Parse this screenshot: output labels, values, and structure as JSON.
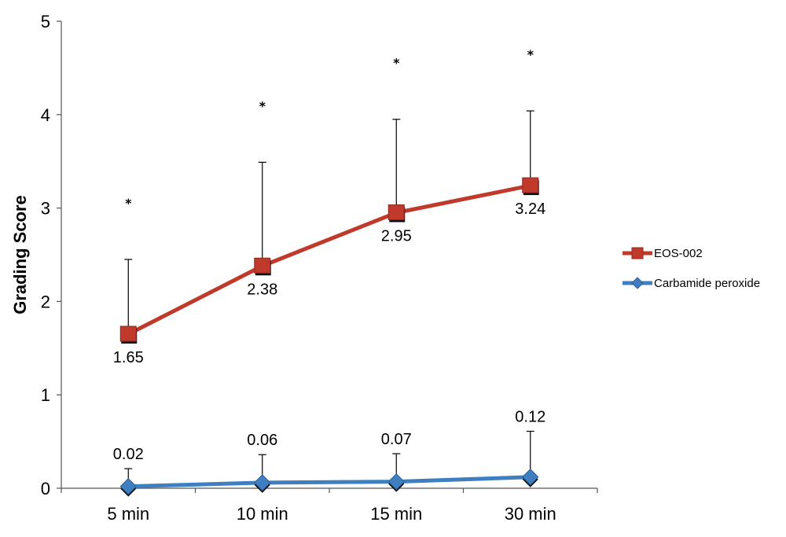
{
  "chart_data": {
    "type": "line",
    "categories": [
      "5 min",
      "10 min",
      "15 min",
      "30 min"
    ],
    "ylabel": "Grading Score",
    "xlabel": "",
    "ylim": [
      0,
      5
    ],
    "yticks": [
      "0",
      "1",
      "2",
      "3",
      "4",
      "5"
    ],
    "grid": false,
    "legend_position": "right",
    "series": [
      {
        "name": "EOS-002",
        "color": "#c0392b",
        "marker": "square",
        "values": [
          1.65,
          2.38,
          2.95,
          3.24
        ],
        "labels": [
          "1.65",
          "2.38",
          "2.95",
          "3.24"
        ],
        "error_upper": [
          2.45,
          3.49,
          3.95,
          4.04
        ],
        "significance": [
          "*",
          "*",
          "*",
          "*"
        ]
      },
      {
        "name": "Carbamide peroxide",
        "color": "#3f7fc1",
        "marker": "diamond",
        "values": [
          0.02,
          0.06,
          0.07,
          0.12
        ],
        "labels": [
          "0.02",
          "0.06",
          "0.07",
          "0.12"
        ],
        "error_upper": [
          0.21,
          0.36,
          0.37,
          0.61
        ]
      }
    ]
  }
}
